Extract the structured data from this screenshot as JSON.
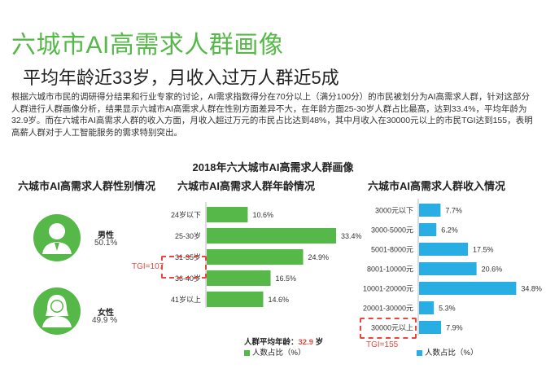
{
  "title": "六城市AI高需求人群画像",
  "subtitle": "平均年龄近33岁，月收入过万人群近5成",
  "description": "根据六城市市民的调研得分结果和行业专家的讨论，AI需求指数得分在70分以上（满分100分）的市民被划分为AI高需求人群，针对这部分人群进行人群画像分析，结果显示六城市AI高需求人群在性别方面差异不大，在年龄方面25-30岁人群占比最高，达到33.4%，平均年龄为32.9岁。而在六城市AI高需求人群的收入方面，月收入超过万元的市民占比达到48%，其中月收入在30000元以上的市民TGI达到155，表明高薪人群对于人工智能服务的需求特别突出。",
  "panel_heading": "2018年六大城市AI高需求人群画像",
  "sections": {
    "gender_title": "六城市AI高需求人群性别情况",
    "age_title": "六城市AI高需求人群年龄情况",
    "income_title": "六城市AI高需求人群收入情况"
  },
  "gender": {
    "male_label": "男性",
    "male_value": "50.1%",
    "female_label": "女性",
    "female_value": "49.9 %",
    "icon_color": "#55b848"
  },
  "age_annotations": {
    "tgi": "TGI=107",
    "avg_prefix": "人群平均年龄：",
    "avg_value": "32.9",
    "avg_suffix": " 岁",
    "legend": "人数占比（%）"
  },
  "income_annotations": {
    "tgi": "TGI=155",
    "legend": "人数占比（%）"
  },
  "chart_data": [
    {
      "type": "bar",
      "orientation": "horizontal",
      "title": "六城市AI高需求人群年龄情况",
      "categories": [
        "24岁以下",
        "25-30岁",
        "31-35岁",
        "36-40岁",
        "41岁以上"
      ],
      "values": [
        10.6,
        33.4,
        24.9,
        16.5,
        14.6
      ],
      "value_labels": [
        "10.6%",
        "33.4%",
        "24.9%",
        "16.5%",
        "14.6%"
      ],
      "legend": "人数占比（%）",
      "color": "#55b848",
      "xlim": [
        0,
        35
      ]
    },
    {
      "type": "bar",
      "orientation": "horizontal",
      "title": "六城市AI高需求人群收入情况",
      "categories": [
        "3000元以下",
        "3000-5000元",
        "5001-8000元",
        "8001-10000元",
        "10001-20000元",
        "20001-30000元",
        "30000元以上"
      ],
      "values": [
        7.7,
        6.2,
        17.5,
        20.6,
        34.8,
        5.3,
        7.9
      ],
      "value_labels": [
        "7.7%",
        "6.2%",
        "17.5%",
        "20.6%",
        "34.8%",
        "5.3%",
        "7.9%"
      ],
      "legend": "人数占比（%）",
      "color": "#29aee3",
      "xlim": [
        0,
        35
      ]
    }
  ]
}
